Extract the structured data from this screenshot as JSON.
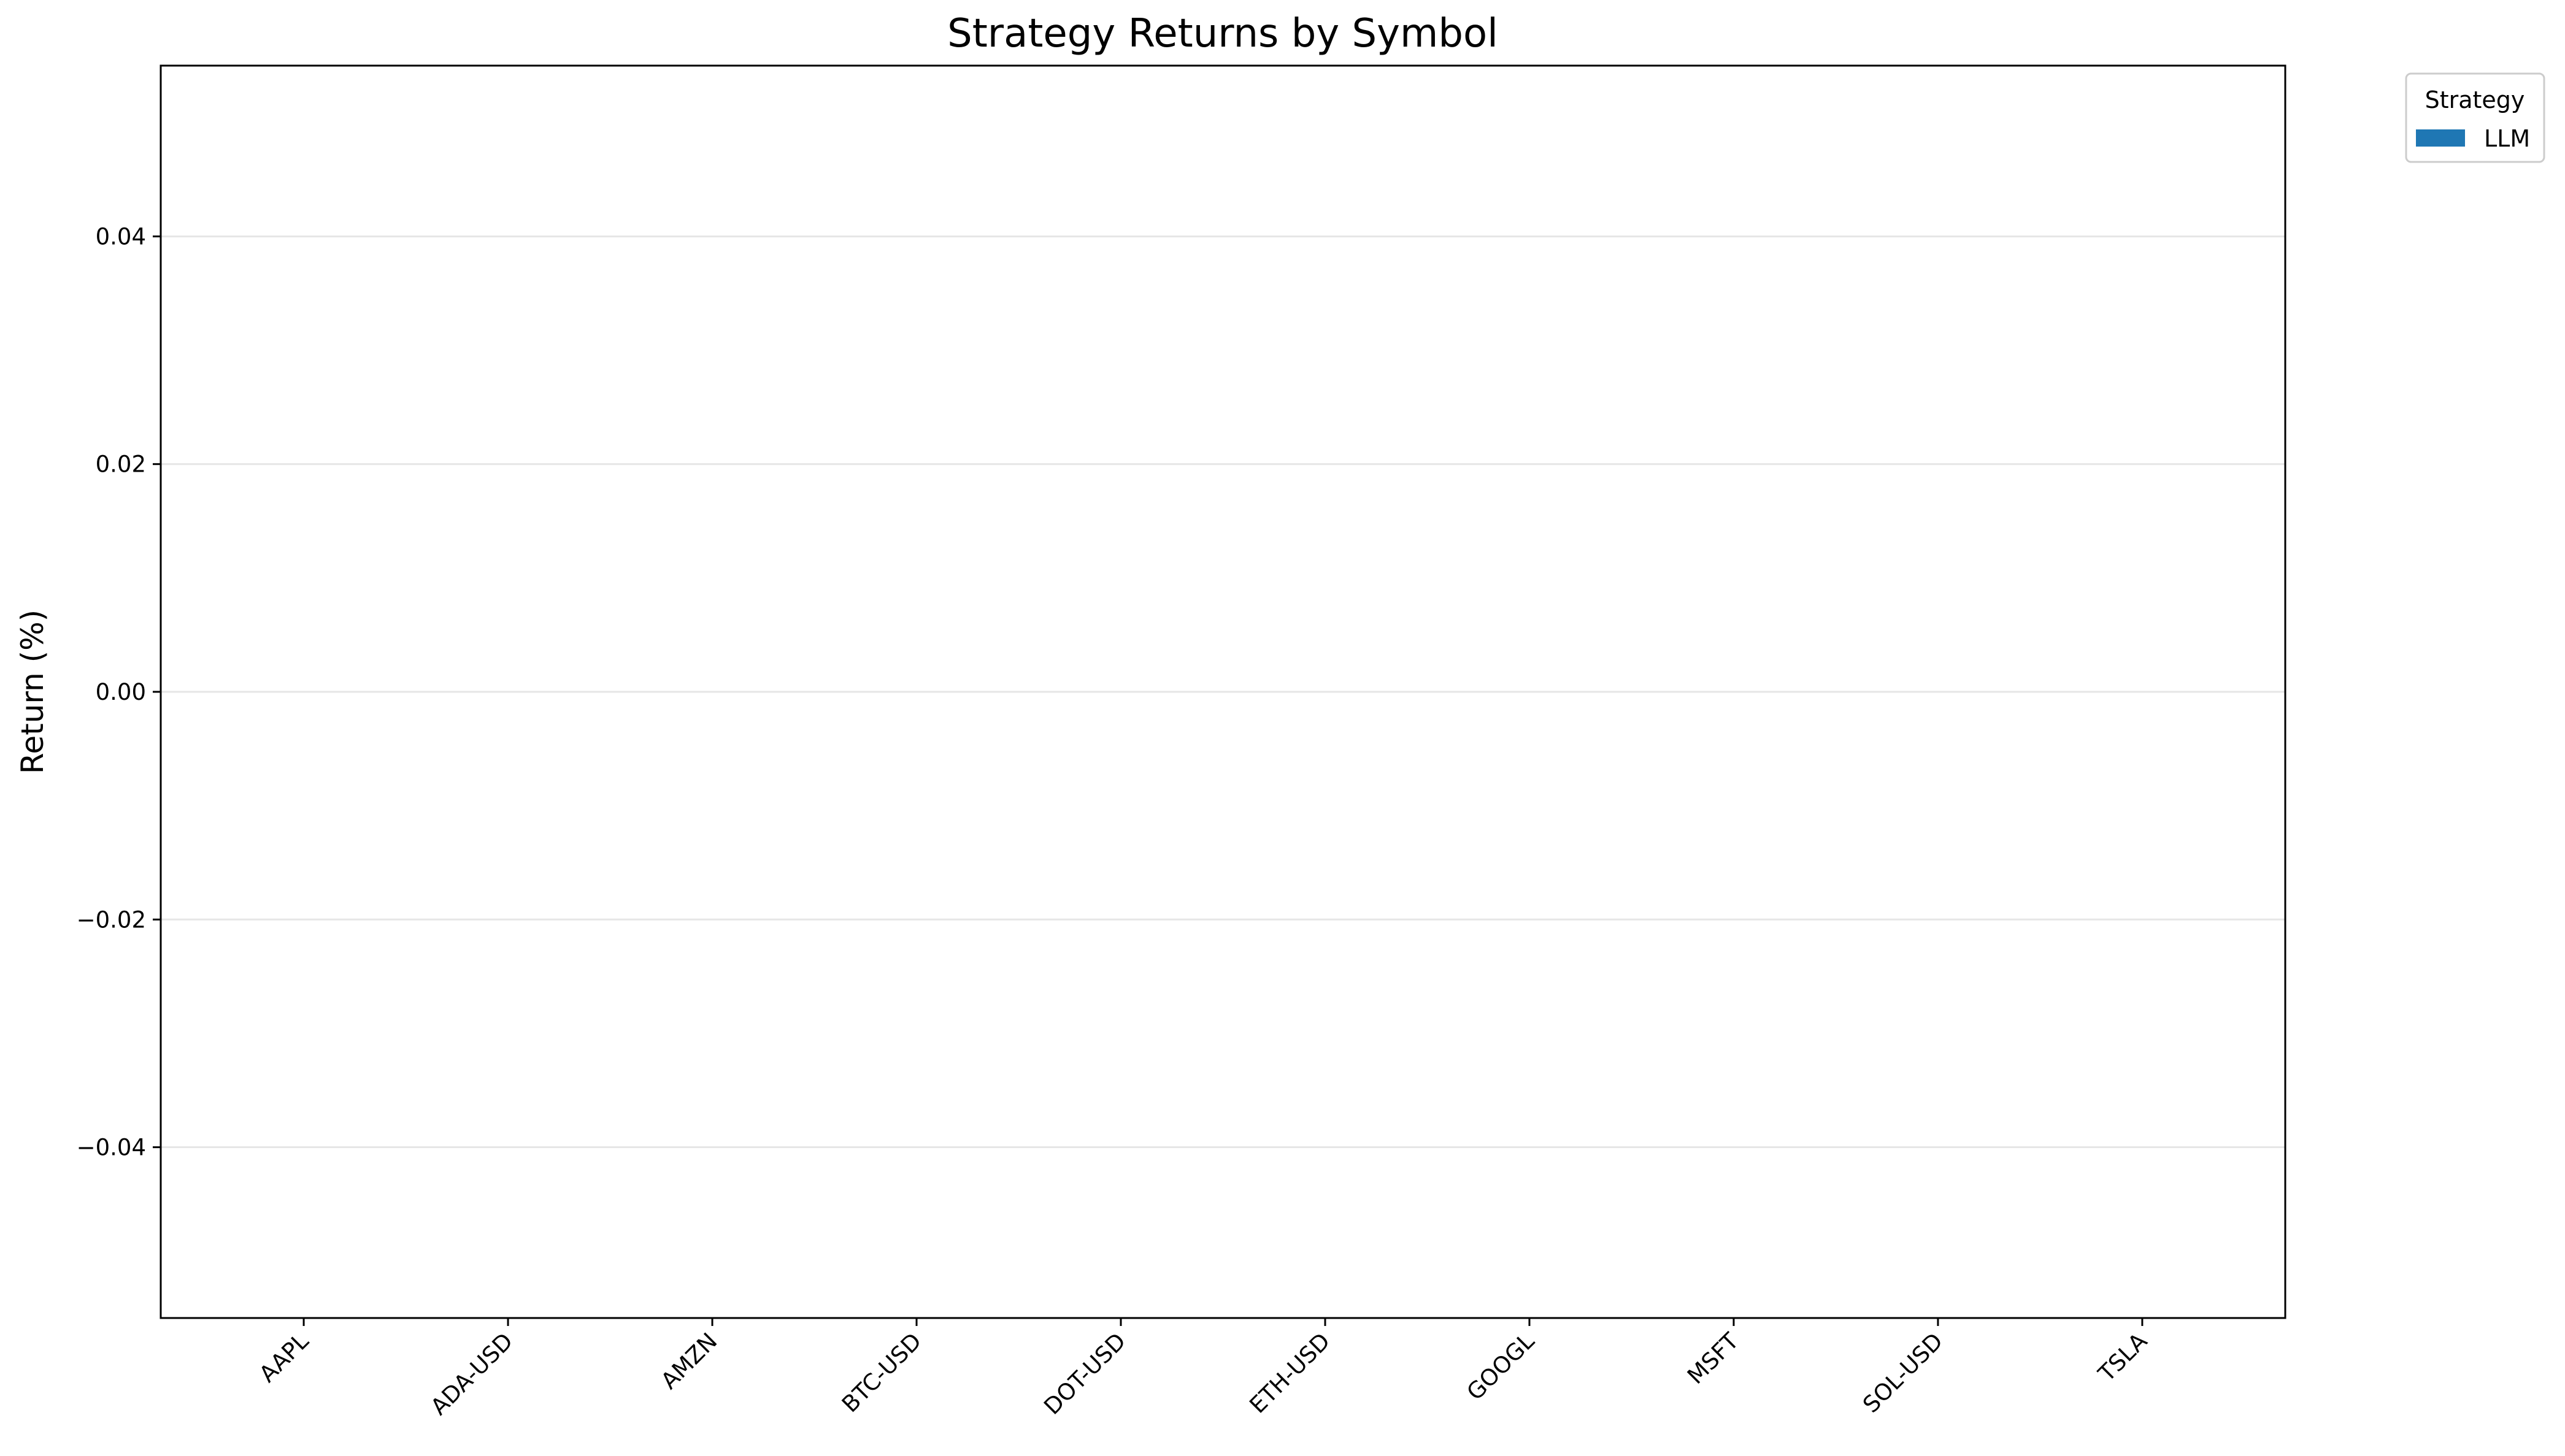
{
  "chart_data": {
    "type": "bar",
    "title": "Strategy Returns by Symbol",
    "xlabel": "",
    "ylabel": "Return (%)",
    "categories": [
      "AAPL",
      "ADA-USD",
      "AMZN",
      "BTC-USD",
      "DOT-USD",
      "ETH-USD",
      "GOOGL",
      "MSFT",
      "SOL-USD",
      "TSLA"
    ],
    "series": [
      {
        "name": "LLM",
        "color": "#1f77b4",
        "values": [
          0,
          0,
          0,
          0,
          0,
          0,
          0,
          0,
          0,
          0
        ]
      }
    ],
    "ylim": [
      -0.055,
      0.055
    ],
    "yticks": [
      -0.04,
      -0.02,
      0.0,
      0.02,
      0.04
    ],
    "ytick_labels": [
      "−0.04",
      "−0.02",
      "0.00",
      "0.02",
      "0.04"
    ],
    "grid": {
      "y": true,
      "x": false
    },
    "legend": {
      "title": "Strategy",
      "placement": "outside-top-right"
    },
    "x_tick_rotation": 45
  }
}
